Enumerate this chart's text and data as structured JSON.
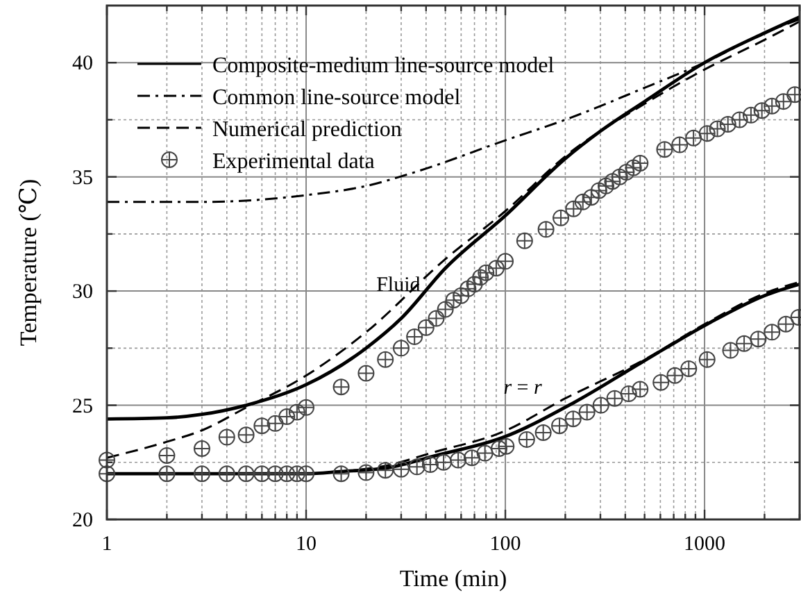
{
  "chart_data": {
    "type": "line",
    "xlabel": "Time (min)",
    "ylabel": "Temperature (℃)",
    "log": "x",
    "xlim": [
      1,
      3000
    ],
    "ylim": [
      20,
      42.5
    ],
    "xticks": [
      1,
      {
        "value": 2,
        "label": null
      },
      {
        "value": 3,
        "label": null
      },
      {
        "value": 4,
        "label": null
      },
      {
        "value": 5,
        "label": null
      },
      {
        "value": 6,
        "label": null
      },
      {
        "value": 7,
        "label": null
      },
      {
        "value": 8,
        "label": null
      },
      {
        "value": 9,
        "label": null
      },
      10,
      {
        "value": 20,
        "label": null
      },
      {
        "value": 30,
        "label": null
      },
      {
        "value": 40,
        "label": null
      },
      {
        "value": 50,
        "label": null
      },
      {
        "value": 60,
        "label": null
      },
      {
        "value": 70,
        "label": null
      },
      {
        "value": 80,
        "label": null
      },
      {
        "value": 90,
        "label": null
      },
      100,
      {
        "value": 200,
        "label": null
      },
      {
        "value": 300,
        "label": null
      },
      {
        "value": 400,
        "label": null
      },
      {
        "value": 500,
        "label": null
      },
      {
        "value": 600,
        "label": null
      },
      {
        "value": 700,
        "label": null
      },
      {
        "value": 800,
        "label": null
      },
      {
        "value": 900,
        "label": null
      },
      1000,
      {
        "value": 2000,
        "label": null
      },
      {
        "value": 3000,
        "label": null
      }
    ],
    "yticks": [
      20,
      {
        "value": 22.5,
        "label": null
      },
      25,
      {
        "value": 27.5,
        "label": null
      },
      30,
      {
        "value": 32.5,
        "label": null
      },
      35,
      {
        "value": 37.5,
        "label": null
      },
      40
    ],
    "grid": true,
    "legend": "top left",
    "series": [
      {
        "name": "Composite-medium line-source model",
        "line_style": "solid",
        "color": "#000000",
        "x": [
          1,
          2,
          3,
          5,
          10,
          20,
          30,
          50,
          100,
          200,
          300,
          500,
          1000,
          2000,
          3000
        ],
        "values": [
          24.4,
          24.45,
          24.6,
          25.0,
          25.9,
          27.5,
          28.8,
          31.0,
          33.3,
          35.8,
          37.0,
          38.3,
          40.0,
          41.3,
          42.0
        ]
      },
      {
        "name": "Common line-source model",
        "line_style": "dashdot",
        "color": "#000000",
        "x": [
          1,
          3,
          10,
          20,
          35,
          100,
          200,
          500,
          1000,
          2000,
          3000
        ],
        "values": [
          33.9,
          33.9,
          34.2,
          34.6,
          35.2,
          36.6,
          37.5,
          38.9,
          40.0,
          41.3,
          41.9
        ]
      },
      {
        "name": "Numerical prediction",
        "line_style": "dashed",
        "color": "#000000",
        "x": [
          1,
          2,
          3,
          5,
          10,
          20,
          50,
          100,
          200,
          500,
          1000,
          2000,
          3000
        ],
        "values": [
          22.7,
          23.4,
          23.9,
          24.9,
          26.3,
          28.2,
          31.4,
          33.5,
          35.9,
          38.2,
          39.7,
          41.0,
          41.8
        ]
      },
      {
        "name": "Experimental data",
        "type": "scatter",
        "marker": "circle",
        "color": "#444444",
        "x": [
          1,
          2,
          3,
          4,
          5,
          6,
          7,
          8,
          9,
          10,
          15,
          20,
          25,
          30,
          35,
          40,
          45,
          50,
          55,
          60,
          65,
          70,
          75,
          80,
          90,
          100,
          125,
          160,
          190,
          220,
          245,
          270,
          295,
          320,
          345,
          375,
          405,
          440,
          475,
          630,
          750,
          880,
          1030,
          1160,
          1310,
          1500,
          1710,
          1940,
          2180,
          2490,
          2840
        ],
        "values": [
          22.6,
          22.8,
          23.1,
          23.6,
          23.7,
          24.1,
          24.2,
          24.5,
          24.7,
          24.9,
          25.8,
          26.4,
          27.0,
          27.5,
          28.0,
          28.4,
          28.8,
          29.2,
          29.6,
          29.8,
          30.1,
          30.3,
          30.6,
          30.8,
          31.0,
          31.3,
          32.2,
          32.7,
          33.2,
          33.6,
          33.9,
          34.1,
          34.4,
          34.6,
          34.8,
          35.0,
          35.2,
          35.4,
          35.6,
          36.2,
          36.4,
          36.7,
          36.9,
          37.1,
          37.3,
          37.5,
          37.7,
          37.9,
          38.1,
          38.3,
          38.6
        ]
      },
      {
        "line_style": "solid",
        "color": "#000000",
        "x": [
          1,
          5,
          10,
          15,
          26,
          44,
          98,
          219,
          488,
          1030,
          2000,
          3000
        ],
        "values": [
          22.0,
          22.0,
          22.0,
          22.1,
          22.27,
          22.78,
          23.6,
          25.1,
          26.9,
          28.55,
          29.8,
          30.3
        ]
      },
      {
        "line_style": "dashed",
        "color": "#000000",
        "x": [
          1,
          5,
          10,
          15,
          25,
          44,
          98,
          200,
          500,
          1000,
          2000,
          3000
        ],
        "values": [
          22.0,
          22.0,
          22.0,
          22.1,
          22.35,
          22.95,
          23.85,
          25.3,
          27.0,
          28.55,
          29.9,
          30.4
        ]
      },
      {
        "type": "scatter",
        "marker": "circle",
        "color": "#444444",
        "x": [
          1,
          2,
          3,
          4,
          5,
          6,
          7,
          8,
          9,
          10,
          15,
          20,
          25,
          30,
          36,
          42,
          49,
          58,
          68,
          79,
          93,
          101,
          128,
          155,
          187,
          219,
          257,
          302,
          354,
          416,
          475,
          604,
          710,
          833,
          1030,
          1350,
          1580,
          1860,
          2180,
          2560,
          2970
        ],
        "values": [
          22.0,
          22.0,
          22.0,
          22.0,
          22.0,
          22.0,
          22.0,
          22.0,
          22.0,
          22.0,
          22.0,
          22.05,
          22.15,
          22.2,
          22.3,
          22.4,
          22.5,
          22.6,
          22.7,
          22.9,
          23.1,
          23.2,
          23.5,
          23.8,
          24.1,
          24.4,
          24.7,
          25.0,
          25.3,
          25.5,
          25.7,
          26.0,
          26.3,
          26.6,
          27.0,
          27.4,
          27.7,
          27.9,
          28.2,
          28.55,
          28.85
        ]
      }
    ],
    "annotations": [
      {
        "text": "Fluid",
        "x": 33,
        "y": 29.2
      },
      {
        "text": "r = r",
        "x": 139,
        "y": 24.7
      }
    ]
  }
}
